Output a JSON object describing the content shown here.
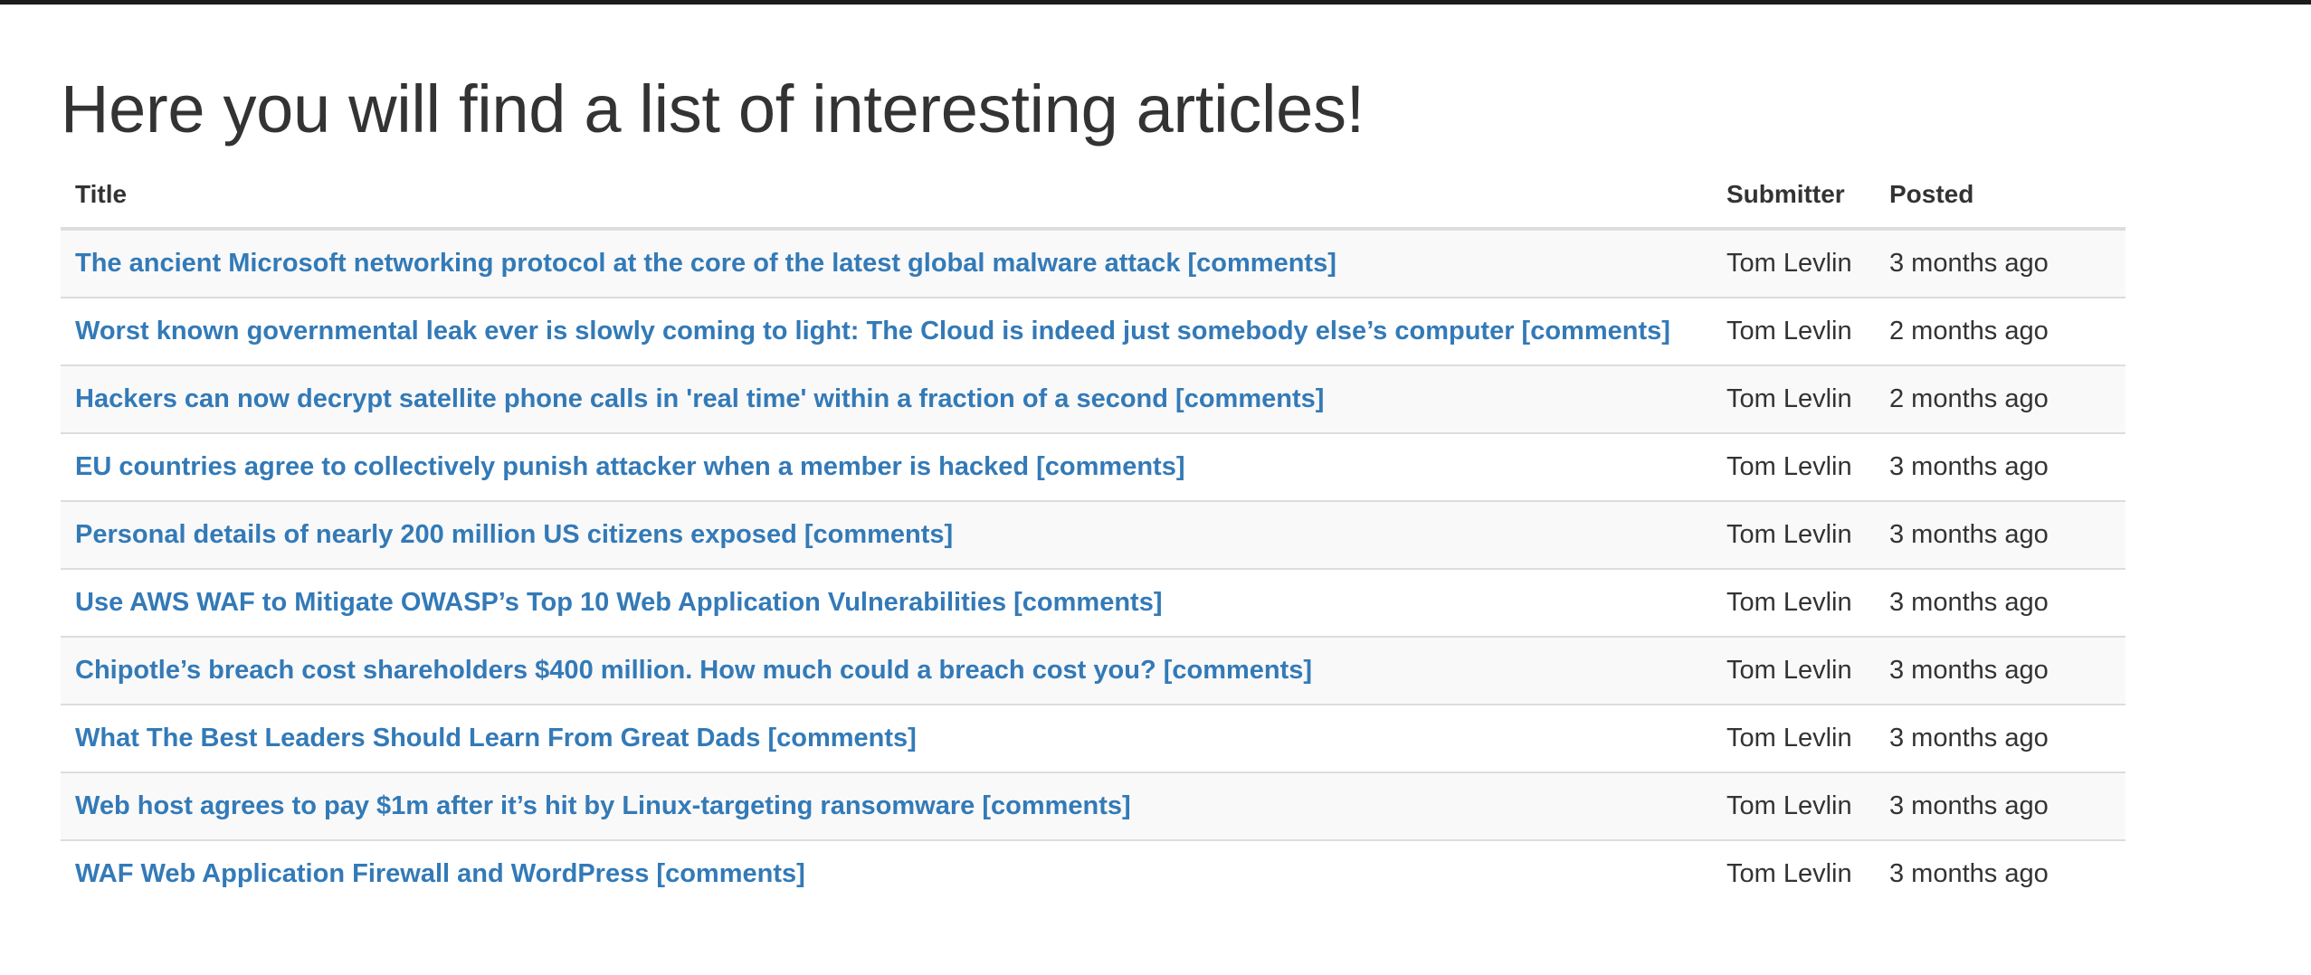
{
  "page": {
    "heading": "Here you will find a list of interesting articles!"
  },
  "table": {
    "headers": {
      "title": "Title",
      "submitter": "Submitter",
      "posted": "Posted"
    },
    "rows": [
      {
        "title": "The ancient Microsoft networking protocol at the core of the latest global malware attack",
        "comments": "[comments]",
        "submitter": "Tom Levlin",
        "posted": "3 months ago"
      },
      {
        "title": "Worst known governmental leak ever is slowly coming to light: The Cloud is indeed just somebody else’s computer",
        "comments": "[comments]",
        "submitter": "Tom Levlin",
        "posted": "2 months ago"
      },
      {
        "title": "Hackers can now decrypt satellite phone calls in 'real time' within a fraction of a second",
        "comments": "[comments]",
        "submitter": "Tom Levlin",
        "posted": "2 months ago"
      },
      {
        "title": "EU countries agree to collectively punish attacker when a member is hacked",
        "comments": "[comments]",
        "submitter": "Tom Levlin",
        "posted": "3 months ago"
      },
      {
        "title": "Personal details of nearly 200 million US citizens exposed",
        "comments": "[comments]",
        "submitter": "Tom Levlin",
        "posted": "3 months ago"
      },
      {
        "title": "Use AWS WAF to Mitigate OWASP’s Top 10 Web Application Vulnerabilities",
        "comments": "[comments]",
        "submitter": "Tom Levlin",
        "posted": "3 months ago"
      },
      {
        "title": "Chipotle’s breach cost shareholders $400 million. How much could a breach cost you?",
        "comments": "[comments]",
        "submitter": "Tom Levlin",
        "posted": "3 months ago"
      },
      {
        "title": "What The Best Leaders Should Learn From Great Dads",
        "comments": "[comments]",
        "submitter": "Tom Levlin",
        "posted": "3 months ago"
      },
      {
        "title": "Web host agrees to pay $1m after it’s hit by Linux-targeting ransomware",
        "comments": "[comments]",
        "submitter": "Tom Levlin",
        "posted": "3 months ago"
      },
      {
        "title": "WAF Web Application Firewall and WordPress",
        "comments": "[comments]",
        "submitter": "Tom Levlin",
        "posted": "3 months ago"
      }
    ]
  },
  "colors": {
    "link": "#337ab7",
    "text": "#333333",
    "stripe": "#f9f9f9",
    "border": "#dddddd",
    "topbar": "#1c1c1c"
  }
}
